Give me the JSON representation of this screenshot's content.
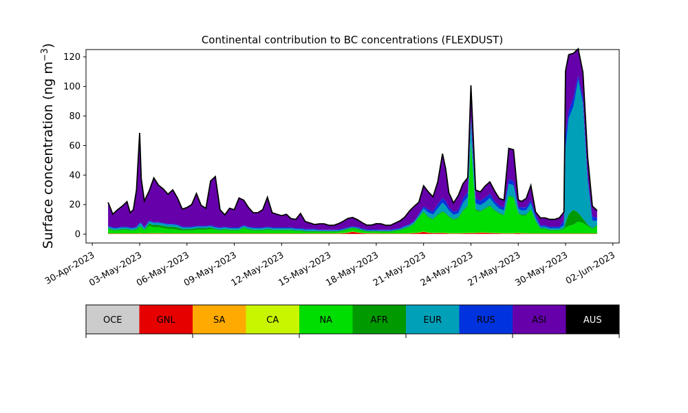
{
  "chart_data": {
    "type": "area",
    "title": "Continental contribution to BC concentrations (FLEXDUST)",
    "ylabel": "Surface concentration (ng m",
    "ylabel_superscript": "−3",
    "ylabel_close": ")",
    "xlabel": "",
    "ylim": [
      -6,
      125
    ],
    "xlim_days": [
      -0.4,
      33.4
    ],
    "yticks": [
      0,
      20,
      40,
      60,
      80,
      100,
      120
    ],
    "xtick_labels": [
      "30-Apr-2023",
      "03-May-2023",
      "06-May-2023",
      "09-May-2023",
      "12-May-2023",
      "15-May-2023",
      "18-May-2023",
      "21-May-2023",
      "24-May-2023",
      "27-May-2023",
      "30-May-2023",
      "02-Jun-2023"
    ],
    "grid": false,
    "x": [
      1.0,
      1.3,
      1.6,
      1.9,
      2.2,
      2.4,
      2.6,
      2.8,
      3.0,
      3.1,
      3.3,
      3.6,
      3.9,
      4.2,
      4.5,
      4.8,
      5.1,
      5.4,
      5.7,
      6.0,
      6.3,
      6.6,
      6.9,
      7.2,
      7.5,
      7.8,
      8.1,
      8.4,
      8.7,
      9.0,
      9.3,
      9.6,
      9.9,
      10.2,
      10.5,
      10.8,
      11.1,
      11.4,
      11.7,
      12.0,
      12.3,
      12.6,
      12.9,
      13.2,
      13.5,
      13.8,
      14.1,
      14.4,
      14.7,
      15.0,
      15.3,
      15.6,
      15.9,
      16.2,
      16.5,
      16.8,
      17.1,
      17.4,
      17.7,
      18.0,
      18.3,
      18.6,
      18.9,
      19.2,
      19.5,
      19.8,
      20.1,
      20.4,
      20.7,
      21.0,
      21.3,
      21.6,
      21.9,
      22.2,
      22.4,
      22.6,
      22.9,
      23.2,
      23.5,
      23.8,
      24.0,
      24.3,
      24.6,
      24.9,
      25.2,
      25.5,
      25.8,
      26.1,
      26.4,
      26.7,
      27.0,
      27.2,
      27.5,
      27.8,
      28.1,
      28.4,
      28.7,
      29.0,
      29.3,
      29.6,
      29.9,
      30.0,
      30.2,
      30.5,
      30.8,
      31.1,
      31.4,
      31.7,
      32.0
    ],
    "series": [
      {
        "name": "OCE",
        "color": "#cccccc",
        "values": [
          0.1,
          0.1,
          0.1,
          0.1,
          0.1,
          0.1,
          0.1,
          0.1,
          0.1,
          0.1,
          0.1,
          0.1,
          0.1,
          0.1,
          0.1,
          0.1,
          0.1,
          0.1,
          0.1,
          0.1,
          0.1,
          0.1,
          0.1,
          0.1,
          0.1,
          0.1,
          0.1,
          0.1,
          0.1,
          0.1,
          0.1,
          0.1,
          0.1,
          0.1,
          0.1,
          0.1,
          0.1,
          0.1,
          0.1,
          0.1,
          0.1,
          0.1,
          0.1,
          0.1,
          0.1,
          0.1,
          0.1,
          0.1,
          0.1,
          0.1,
          0.1,
          0.1,
          0.1,
          0.1,
          0.1,
          0.1,
          0.1,
          0.1,
          0.1,
          0.1,
          0.1,
          0.1,
          0.1,
          0.1,
          0.1,
          0.1,
          0.1,
          0.1,
          0.1,
          0.1,
          0.1,
          0.1,
          0.1,
          0.1,
          0.1,
          0.1,
          0.1,
          0.1,
          0.1,
          0.1,
          0.1,
          0.1,
          0.1,
          0.1,
          0.1,
          0.1,
          0.1,
          0.1,
          0.1,
          0.1,
          0.1,
          0.1,
          0.1,
          0.1,
          0.1,
          0.1,
          0.1,
          0.1,
          0.1,
          0.1,
          0.1,
          0.1,
          0.1,
          0.1,
          0.1,
          0.1,
          0.1,
          0.1,
          0.1
        ]
      },
      {
        "name": "GNL",
        "color": "#e60000",
        "values": [
          0.2,
          0.2,
          0.2,
          0.2,
          0.2,
          0.2,
          0.2,
          0.2,
          0.3,
          0.3,
          0.2,
          0.3,
          0.3,
          0.3,
          0.3,
          0.2,
          0.2,
          0.2,
          0.2,
          0.2,
          0.2,
          0.2,
          0.2,
          0.2,
          0.2,
          0.2,
          0.2,
          0.2,
          0.2,
          0.2,
          0.2,
          0.2,
          0.2,
          0.2,
          0.2,
          0.2,
          0.2,
          0.2,
          0.2,
          0.2,
          0.2,
          0.2,
          0.2,
          0.2,
          0.2,
          0.2,
          0.2,
          0.2,
          0.2,
          0.2,
          0.2,
          0.3,
          0.4,
          0.8,
          1.5,
          1.0,
          0.5,
          0.3,
          0.3,
          0.3,
          0.2,
          0.2,
          0.2,
          0.2,
          0.2,
          0.2,
          0.3,
          0.5,
          0.8,
          1.5,
          0.8,
          0.5,
          0.6,
          0.6,
          0.5,
          0.3,
          0.3,
          0.3,
          0.4,
          0.5,
          0.5,
          0.6,
          0.8,
          0.8,
          0.6,
          0.5,
          0.4,
          0.3,
          0.3,
          0.3,
          0.5,
          0.3,
          0.3,
          0.2,
          0.2,
          0.2,
          0.2,
          0.2,
          0.2,
          0.2,
          0.2,
          0.2,
          0.2,
          0.2,
          0.2,
          0.2,
          0.2,
          0.2,
          0.2
        ]
      },
      {
        "name": "SA",
        "color": "#ffaa00",
        "values": [
          0.1,
          0.1,
          0.1,
          0.1,
          0.1,
          0.1,
          0.1,
          0.1,
          0.1,
          0.1,
          0.1,
          0.1,
          0.1,
          0.1,
          0.1,
          0.1,
          0.1,
          0.1,
          0.1,
          0.1,
          0.1,
          0.1,
          0.1,
          0.1,
          0.1,
          0.1,
          0.1,
          0.1,
          0.1,
          0.1,
          0.1,
          0.1,
          0.1,
          0.1,
          0.1,
          0.1,
          0.1,
          0.1,
          0.1,
          0.1,
          0.1,
          0.1,
          0.1,
          0.1,
          0.1,
          0.1,
          0.1,
          0.1,
          0.1,
          0.1,
          0.1,
          0.1,
          0.1,
          0.1,
          0.1,
          0.1,
          0.1,
          0.1,
          0.1,
          0.1,
          0.1,
          0.1,
          0.1,
          0.1,
          0.1,
          0.1,
          0.1,
          0.1,
          0.1,
          0.1,
          0.1,
          0.1,
          0.1,
          0.1,
          0.1,
          0.1,
          0.1,
          0.1,
          0.1,
          0.1,
          0.1,
          0.1,
          0.1,
          0.1,
          0.1,
          0.1,
          0.1,
          0.1,
          0.1,
          0.1,
          0.1,
          0.1,
          0.1,
          0.1,
          0.1,
          0.1,
          0.1,
          0.1,
          0.1,
          0.1,
          0.1,
          0.1,
          0.1,
          0.1,
          0.1,
          0.1,
          0.1,
          0.1,
          0.1
        ]
      },
      {
        "name": "CA",
        "color": "#c8f500",
        "values": [
          0.1,
          0.1,
          0.1,
          0.1,
          0.1,
          0.1,
          0.1,
          0.1,
          0.1,
          0.1,
          0.1,
          0.1,
          0.1,
          0.1,
          0.1,
          0.1,
          0.1,
          0.1,
          0.1,
          0.1,
          0.1,
          0.1,
          0.1,
          0.1,
          0.1,
          0.1,
          0.1,
          0.1,
          0.1,
          0.1,
          0.1,
          0.1,
          0.1,
          0.1,
          0.1,
          0.1,
          0.1,
          0.1,
          0.1,
          0.1,
          0.1,
          0.1,
          0.1,
          0.1,
          0.1,
          0.1,
          0.1,
          0.1,
          0.1,
          0.1,
          0.1,
          0.1,
          0.1,
          0.1,
          0.1,
          0.1,
          0.1,
          0.1,
          0.1,
          0.1,
          0.1,
          0.1,
          0.1,
          0.1,
          0.1,
          0.1,
          0.1,
          0.1,
          0.1,
          0.1,
          0.1,
          0.1,
          0.1,
          0.1,
          0.1,
          0.1,
          0.1,
          0.1,
          0.1,
          0.1,
          0.1,
          0.1,
          0.1,
          0.1,
          0.1,
          0.1,
          0.1,
          0.1,
          0.1,
          0.1,
          0.1,
          0.1,
          0.1,
          0.1,
          0.1,
          0.1,
          0.1,
          0.1,
          0.1,
          0.1,
          0.1,
          0.1,
          0.1,
          0.1,
          0.1,
          0.1,
          0.1,
          0.1,
          0.1
        ]
      },
      {
        "name": "NA",
        "color": "#00dd00",
        "values": [
          3,
          2,
          2,
          2.5,
          2.5,
          2,
          2,
          2.5,
          4,
          4,
          2,
          5,
          4,
          4,
          3.5,
          3,
          3,
          2.5,
          2,
          2,
          2,
          2.5,
          2.5,
          2.5,
          3,
          2.5,
          2,
          2.5,
          2,
          2,
          2,
          3.5,
          2.5,
          2,
          2,
          2,
          2.5,
          2,
          2,
          2,
          2,
          2,
          1.5,
          1.5,
          1,
          1,
          1,
          1,
          1,
          1,
          1,
          1,
          1.5,
          2,
          2,
          2,
          1.5,
          1,
          1,
          1,
          1,
          1,
          1,
          1.5,
          2,
          3,
          4,
          6,
          10,
          13,
          10,
          9,
          12,
          14,
          13,
          11,
          9,
          10,
          15,
          18,
          60,
          15,
          14,
          16,
          18,
          15,
          13,
          12,
          25,
          24,
          13,
          12,
          12,
          16,
          8,
          3,
          3,
          2,
          2,
          2,
          3,
          4,
          5,
          6,
          8,
          7,
          5,
          3,
          5
        ]
      },
      {
        "name": "AFR",
        "color": "#009900",
        "values": [
          0.5,
          0.5,
          0.5,
          0.5,
          0.5,
          0.5,
          0.5,
          0.5,
          0.5,
          0.5,
          0.5,
          1.5,
          1.5,
          1.5,
          1.5,
          1.5,
          1.5,
          1.5,
          1,
          1,
          1,
          1,
          1,
          1,
          1,
          0.5,
          0.5,
          0.5,
          0.5,
          0.5,
          0.5,
          0.5,
          0.5,
          0.5,
          0.5,
          0.5,
          0.5,
          0.5,
          0.5,
          0.5,
          0.5,
          0.5,
          0.5,
          0.5,
          0.5,
          0.5,
          0.5,
          0.5,
          0.5,
          0.5,
          0.5,
          0.5,
          0.5,
          0.5,
          0.5,
          0.5,
          0.5,
          0.5,
          0.5,
          0.5,
          0.5,
          0.5,
          0.5,
          0.5,
          0.5,
          0.5,
          0.5,
          0.5,
          0.5,
          0.5,
          0.5,
          0.5,
          0.5,
          0.5,
          0.5,
          0.5,
          0.5,
          0.5,
          0.5,
          0.5,
          1,
          1,
          0.5,
          0.5,
          0.5,
          0.5,
          0.5,
          0.5,
          0.5,
          0.5,
          0.5,
          0.5,
          0.5,
          0.5,
          0.5,
          0.5,
          0.5,
          0.5,
          0.5,
          0.5,
          0.5,
          3,
          8,
          10,
          6,
          3,
          1,
          0.5,
          0.5
        ]
      },
      {
        "name": "EUR",
        "color": "#00a0b8",
        "values": [
          1,
          1,
          1,
          1,
          1,
          1,
          1,
          1,
          2,
          2,
          1,
          1.5,
          1.5,
          1.5,
          1.5,
          1.5,
          1.5,
          1.5,
          1,
          1,
          1,
          1,
          1,
          1,
          1,
          1,
          1,
          1,
          1,
          1,
          1,
          1,
          1,
          1,
          1,
          1,
          1,
          1,
          1,
          1,
          1,
          1,
          1,
          1,
          1,
          1,
          1,
          0.5,
          0.5,
          0.5,
          0.5,
          0.5,
          0.5,
          0.5,
          0.5,
          0.5,
          0.5,
          0.5,
          0.5,
          0.5,
          0.5,
          0.5,
          0.5,
          0.5,
          0.5,
          1,
          1,
          1,
          1,
          2,
          3,
          3,
          4,
          6,
          5,
          4,
          3,
          3,
          5,
          6,
          15,
          4,
          4,
          4,
          5,
          4,
          3,
          3,
          8,
          8,
          3,
          3,
          3,
          4,
          2,
          1,
          1,
          1,
          1,
          1,
          2,
          50,
          65,
          70,
          90,
          78,
          30,
          5,
          3
        ]
      },
      {
        "name": "RUS",
        "color": "#0033dd",
        "values": [
          0.5,
          0.5,
          0.5,
          0.5,
          0.5,
          0.5,
          0.5,
          0.5,
          0.5,
          0.5,
          0.5,
          0.5,
          0.5,
          0.5,
          0.5,
          0.5,
          0.5,
          0.5,
          0.5,
          0.5,
          0.5,
          0.5,
          0.5,
          0.5,
          0.5,
          0.5,
          0.5,
          0.5,
          0.5,
          0.5,
          0.5,
          0.5,
          0.5,
          0.5,
          0.5,
          0.5,
          0.5,
          0.5,
          0.5,
          0.5,
          0.5,
          0.5,
          0.5,
          0.5,
          0.5,
          0.5,
          0.5,
          0.5,
          0.5,
          0.5,
          0.5,
          0.5,
          0.5,
          0.5,
          0.5,
          0.5,
          0.5,
          0.5,
          0.5,
          0.5,
          0.5,
          0.5,
          0.5,
          0.5,
          0.5,
          0.5,
          0.5,
          0.5,
          1,
          1.5,
          2,
          2,
          3,
          3,
          3,
          2,
          2,
          2,
          3,
          3,
          3,
          3,
          3,
          3,
          3,
          2,
          2,
          2,
          3,
          3,
          1,
          2,
          2,
          2,
          2,
          1,
          1,
          1,
          1,
          1,
          3,
          10,
          5,
          6,
          3,
          4,
          3,
          3,
          2
        ]
      },
      {
        "name": "ASI",
        "color": "#6600aa",
        "values": [
          16,
          9,
          12,
          14,
          17,
          10,
          12,
          25,
          61,
          30,
          18,
          20,
          30,
          25,
          23,
          20,
          23,
          18,
          12,
          13,
          15,
          22,
          14,
          12,
          30,
          34,
          12,
          8,
          13,
          12,
          20,
          17,
          13,
          10,
          10,
          12,
          20,
          10,
          9,
          8,
          9,
          6,
          6,
          10,
          5,
          4,
          3,
          4,
          4,
          3,
          3,
          4,
          5,
          6,
          6,
          5,
          4,
          3,
          3,
          4,
          4,
          3,
          3,
          4,
          5,
          6,
          9,
          10,
          8,
          14,
          12,
          10,
          15,
          30,
          22,
          10,
          6,
          10,
          10,
          10,
          21,
          6,
          6,
          8,
          8,
          7,
          5,
          5,
          21,
          21,
          5,
          4,
          6,
          10,
          2,
          5,
          5,
          5,
          5,
          6,
          6,
          43,
          38,
          30,
          18,
          17,
          13,
          7,
          5
        ]
      },
      {
        "name": "AUS",
        "color": "#000000",
        "values": [
          0,
          0,
          0,
          0,
          0,
          0,
          0,
          0,
          0,
          0,
          0,
          0,
          0,
          0,
          0,
          0,
          0,
          0,
          0,
          0,
          0,
          0,
          0,
          0,
          0,
          0,
          0,
          0,
          0,
          0,
          0,
          0,
          0,
          0,
          0,
          0,
          0,
          0,
          0,
          0,
          0,
          0,
          0,
          0,
          0,
          0,
          0,
          0,
          0,
          0,
          0,
          0,
          0,
          0,
          0,
          0,
          0,
          0,
          0,
          0,
          0,
          0,
          0,
          0,
          0,
          0,
          0,
          0,
          0,
          0,
          0,
          0,
          0,
          0,
          0,
          0,
          0,
          0,
          0,
          0,
          0,
          0,
          0,
          0,
          0,
          0,
          0,
          0,
          0,
          0,
          0,
          0,
          0,
          0,
          0,
          0,
          0,
          0,
          0,
          0,
          0,
          0,
          0,
          0,
          0,
          0,
          0,
          0,
          0
        ]
      }
    ],
    "legend_placement": "bottom-colorbar"
  }
}
